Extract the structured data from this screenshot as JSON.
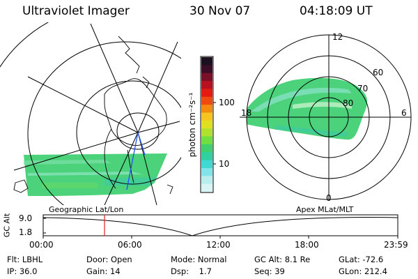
{
  "header": {
    "title": "Ultraviolet Imager",
    "date": "30 Nov 07",
    "time": "04:18:09 UT"
  },
  "colorbar": {
    "unit_label": "photon cm⁻²s⁻¹",
    "ticks": [
      "100",
      "10"
    ],
    "colors": [
      "#1a1020",
      "#3a0f25",
      "#7a1028",
      "#b81020",
      "#e61a10",
      "#f04a10",
      "#f58a10",
      "#f8c520",
      "#e0e020",
      "#b0e030",
      "#70e040",
      "#40d070",
      "#30d0a0",
      "#40d8d0",
      "#80e4e8",
      "#b8eeee",
      "#d8f4f4"
    ]
  },
  "geo_panel": {
    "label": "Geographic Lat/Lon"
  },
  "polar_panel": {
    "label": "Apex MLat/MLT",
    "mlt_labels": {
      "top": "12",
      "left": "18",
      "right": "6",
      "bottom": "0"
    },
    "lat_labels": [
      "60",
      "70",
      "80"
    ]
  },
  "altitude_strip": {
    "ylabel": "GC Alt",
    "yticks": [
      "9.0",
      "1.8"
    ],
    "xticks": [
      "00:00",
      "06:00",
      "12:00",
      "18:00",
      "23:59"
    ]
  },
  "stats": {
    "flt": "Flt: LBHL",
    "ip": "IP: 36.0",
    "door": "Door: Open",
    "gain": "Gain: 14",
    "mode": "Mode: Normal",
    "dsp": "Dsp:    1.7",
    "gc_alt": "GC Alt: 8.1 Re",
    "seq": "Seq: 39",
    "glat": "GLat: -72.6",
    "glon": "GLon: 212.4"
  }
}
